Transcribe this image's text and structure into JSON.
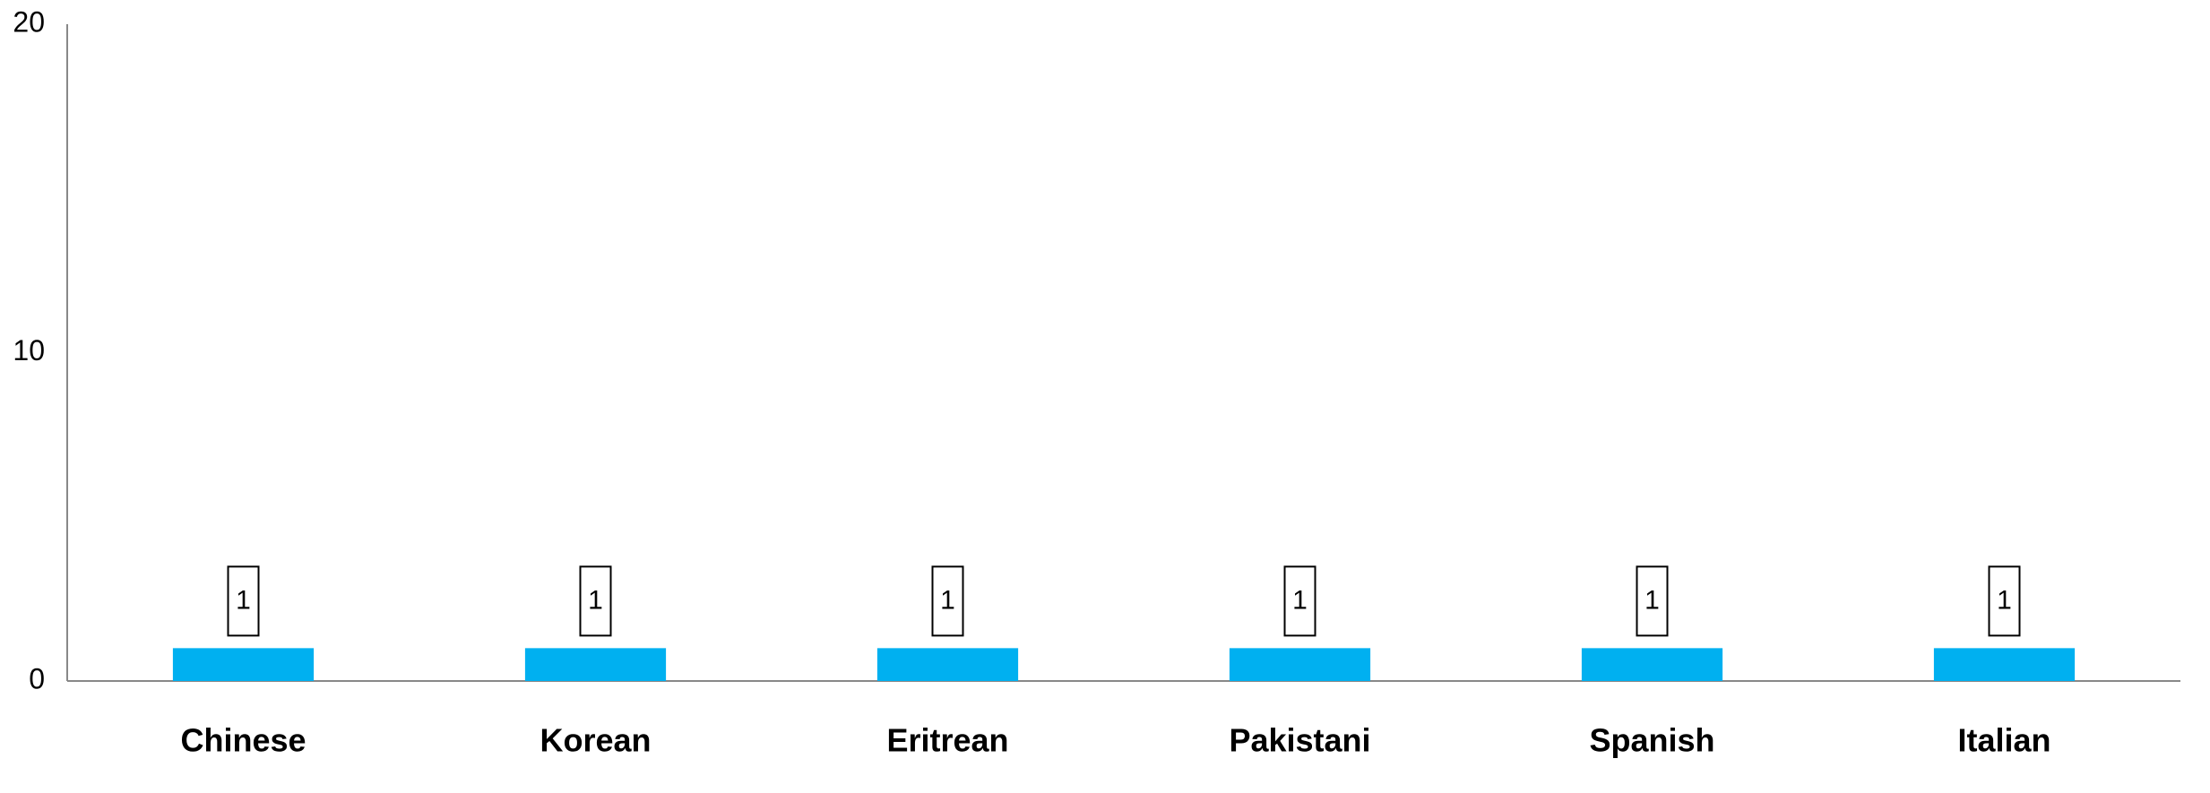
{
  "chart_data": {
    "type": "bar",
    "categories": [
      "Chinese",
      "Korean",
      "Eritrean",
      "Pakistani",
      "Spanish",
      "Italian"
    ],
    "values": [
      1,
      1,
      1,
      1,
      1,
      1
    ],
    "color": "#00b0f0",
    "ylim": [
      0,
      20
    ],
    "yticks": [
      0,
      10,
      20
    ],
    "grid": false
  }
}
